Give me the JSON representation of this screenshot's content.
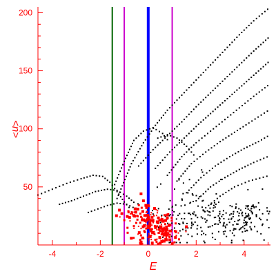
{
  "chart_data": {
    "type": "scatter",
    "xlabel": "E",
    "ylabel": "<n>",
    "xlim": [
      -4.6,
      5.1
    ],
    "ylim": [
      0,
      205
    ],
    "x_ticks": [
      "-4",
      "-2",
      "0",
      "2",
      "4"
    ],
    "x_tick_values": [
      -4,
      -2,
      0,
      2,
      4
    ],
    "y_ticks": [
      "50",
      "100",
      "150",
      "200"
    ],
    "y_tick_values": [
      50,
      100,
      150,
      200
    ],
    "grid": false,
    "colors": {
      "axis": "#ff0000",
      "black_series": "#000000",
      "red_series": "#ff0000",
      "line_blue": "#0000ff",
      "line_green": "#006400",
      "line_magenta": "#cc00cc"
    },
    "vertical_lines": [
      {
        "x": -1.5,
        "color": "#006400",
        "width": 2
      },
      {
        "x": -1.0,
        "color": "#cc00cc",
        "width": 2
      },
      {
        "x": 0.0,
        "color": "#0000ff",
        "width": 4
      },
      {
        "x": 1.0,
        "color": "#cc00cc",
        "width": 2
      }
    ],
    "series": [
      {
        "color": "#000000",
        "style": "dots",
        "curves": [
          {
            "x": [
              -1.3,
              -0.7,
              -0.2,
              0.3,
              0.8,
              1.4,
              2.0,
              2.6,
              3.2,
              3.8,
              4.4,
              5.1
            ],
            "y": [
              40,
              70,
              88,
              103,
              116,
              129,
              142,
              155,
              168,
              181,
              193,
              205
            ]
          },
          {
            "x": [
              -0.4,
              0.2,
              0.8,
              1.4,
              2.0,
              2.6,
              3.2,
              3.8,
              4.4,
              5.1
            ],
            "y": [
              68,
              82,
              94,
              106,
              119,
              131,
              143,
              155,
              167,
              180
            ]
          },
          {
            "x": [
              0.3,
              0.9,
              1.5,
              2.1,
              2.7,
              3.3,
              3.9,
              4.5,
              5.1
            ],
            "y": [
              66,
              80,
              92,
              104,
              115,
              126,
              137,
              148,
              159
            ]
          },
          {
            "x": [
              0.8,
              1.4,
              2.0,
              2.6,
              3.2,
              3.8,
              4.4,
              5.1
            ],
            "y": [
              60,
              76,
              88,
              98,
              108,
              118,
              128,
              139
            ]
          },
          {
            "x": [
              1.2,
              1.8,
              2.4,
              3.0,
              3.6,
              4.2,
              5.1
            ],
            "y": [
              55,
              70,
              80,
              89,
              97,
              105,
              117
            ]
          },
          {
            "x": [
              1.6,
              2.2,
              2.8,
              3.4,
              4.0,
              4.6,
              5.1
            ],
            "y": [
              45,
              58,
              68,
              76,
              83,
              89,
              95
            ]
          },
          {
            "x": [
              2.0,
              2.6,
              3.2,
              3.8,
              4.4,
              5.1
            ],
            "y": [
              38,
              50,
              58,
              65,
              71,
              77
            ]
          },
          {
            "x": [
              2.4,
              3.0,
              3.6,
              4.2,
              5.1
            ],
            "y": [
              32,
              42,
              50,
              55,
              60
            ]
          },
          {
            "x": [
              -4.6,
              -4.0,
              -3.4,
              -2.8,
              -2.3,
              -1.9,
              -1.6,
              -1.3,
              -1.0,
              -0.7
            ],
            "y": [
              43,
              48,
              53,
              57,
              60,
              59,
              54,
              46,
              37,
              30
            ]
          },
          {
            "x": [
              -3.7,
              -3.2,
              -2.7,
              -2.2,
              -1.7,
              -1.3,
              -0.9,
              -0.5
            ],
            "y": [
              35,
              38,
              42,
              46,
              48,
              47,
              42,
              35
            ]
          },
          {
            "x": [
              -2.5,
              -2.1,
              -1.7,
              -1.3,
              -0.9,
              -0.5
            ],
            "y": [
              28,
              31,
              34,
              36,
              35,
              31
            ]
          },
          {
            "x": [
              -1.4,
              -1.0,
              -0.6,
              -0.2,
              0.2,
              0.6,
              0.9
            ],
            "y": [
              52,
              72,
              90,
              98,
              101,
              96,
              88
            ]
          },
          {
            "x": [
              0.4,
              0.8,
              1.2,
              1.6,
              2.0
            ],
            "y": [
              92,
              95,
              92,
              85,
              75
            ]
          }
        ],
        "clusters": [
          {
            "cx": 2.7,
            "cy": 20,
            "sx": 1.1,
            "sy": 9,
            "n": 140
          },
          {
            "cx": 4.2,
            "cy": 25,
            "sx": 0.7,
            "sy": 10,
            "n": 90
          },
          {
            "cx": 1.6,
            "cy": 32,
            "sx": 0.7,
            "sy": 14,
            "n": 60
          }
        ]
      },
      {
        "color": "#ff0000",
        "style": "squares",
        "clusters": [
          {
            "cx": 0.1,
            "cy": 15,
            "sx": 0.45,
            "sy": 9,
            "n": 150
          },
          {
            "cx": -0.6,
            "cy": 27,
            "sx": 0.35,
            "sy": 3,
            "n": 30
          },
          {
            "cx": 0.7,
            "cy": 10,
            "sx": 0.35,
            "sy": 5,
            "n": 40
          }
        ],
        "points": [
          {
            "x": -0.3,
            "y": 44
          },
          {
            "x": -0.2,
            "y": 38
          },
          {
            "x": -1.2,
            "y": 30
          },
          {
            "x": -1.1,
            "y": 27
          }
        ]
      }
    ]
  }
}
